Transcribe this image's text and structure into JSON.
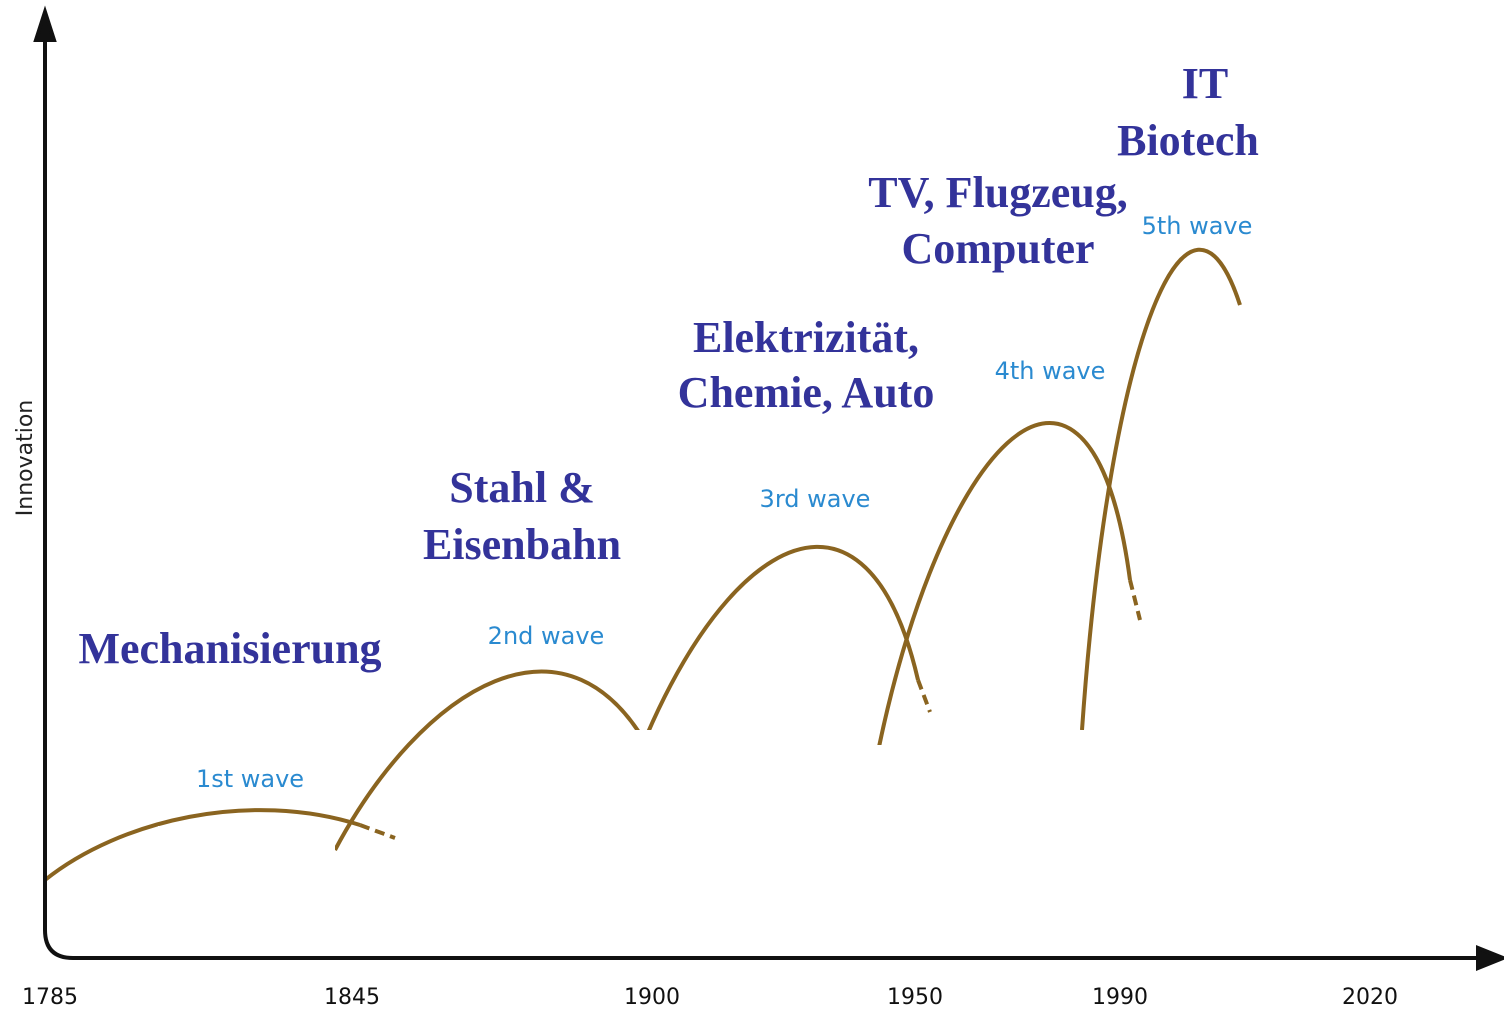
{
  "axis": {
    "y_label": "Innovation",
    "x_labels": [
      "1785",
      "1845",
      "1900",
      "1950",
      "1990",
      "2020"
    ]
  },
  "waves": [
    {
      "label": "1st wave",
      "caption": [
        "Mechanisierung"
      ]
    },
    {
      "label": "2nd wave",
      "caption": [
        "Stahl &",
        "Eisenbahn"
      ]
    },
    {
      "label": "3rd wave",
      "caption": [
        "Elektrizität,",
        "Chemie, Auto"
      ]
    },
    {
      "label": "4th wave",
      "caption": [
        "TV, Flugzeug,",
        "Computer"
      ]
    },
    {
      "label": "5th wave",
      "caption": [
        "IT",
        "Biotech"
      ]
    }
  ]
}
